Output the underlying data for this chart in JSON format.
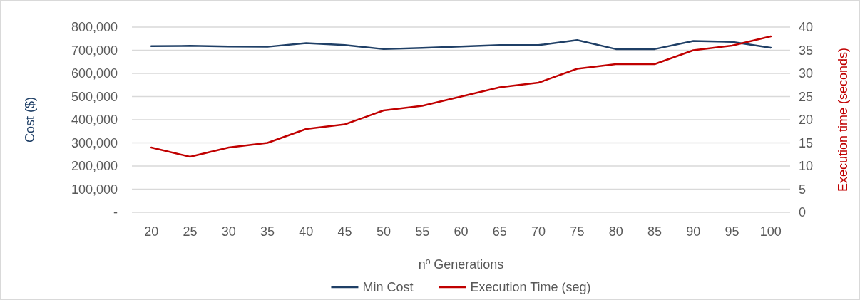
{
  "chart_data": {
    "type": "line",
    "xlabel": "nº Generations",
    "ylabel": "Cost ($)",
    "y2label": "Execution time (seconds)",
    "categories": [
      "20",
      "25",
      "30",
      "35",
      "40",
      "45",
      "50",
      "55",
      "60",
      "65",
      "70",
      "75",
      "80",
      "85",
      "90",
      "95",
      "100"
    ],
    "series": [
      {
        "name": "Min Cost",
        "color": "#1f3f66",
        "values": [
          718000,
          719000,
          716000,
          715000,
          731000,
          722000,
          705000,
          710000,
          716000,
          722000,
          722000,
          744000,
          705000,
          705000,
          740000,
          736000,
          711000
        ]
      },
      {
        "name": "Execution Time (seg)",
        "color": "#c00000",
        "axis": "y2",
        "values": [
          14,
          12,
          14,
          15,
          18,
          19,
          22,
          23,
          25,
          27,
          28,
          31,
          32,
          32,
          35,
          36,
          38
        ]
      }
    ],
    "ylim": [
      0,
      800000
    ],
    "yticks": [
      {
        "value": 0,
        "label": "-"
      },
      {
        "value": 100000,
        "label": "100,000"
      },
      {
        "value": 200000,
        "label": "200,000"
      },
      {
        "value": 300000,
        "label": "300,000"
      },
      {
        "value": 400000,
        "label": "400,000"
      },
      {
        "value": 500000,
        "label": "500,000"
      },
      {
        "value": 600000,
        "label": "600,000"
      },
      {
        "value": 700000,
        "label": "700,000"
      },
      {
        "value": 800000,
        "label": "800,000"
      }
    ],
    "y2lim": [
      0,
      40
    ],
    "y2ticks": [
      0,
      5,
      10,
      15,
      20,
      25,
      30,
      35,
      40
    ],
    "grid": "y",
    "legend": "bottom",
    "marker": "none",
    "line_style": "solid"
  }
}
